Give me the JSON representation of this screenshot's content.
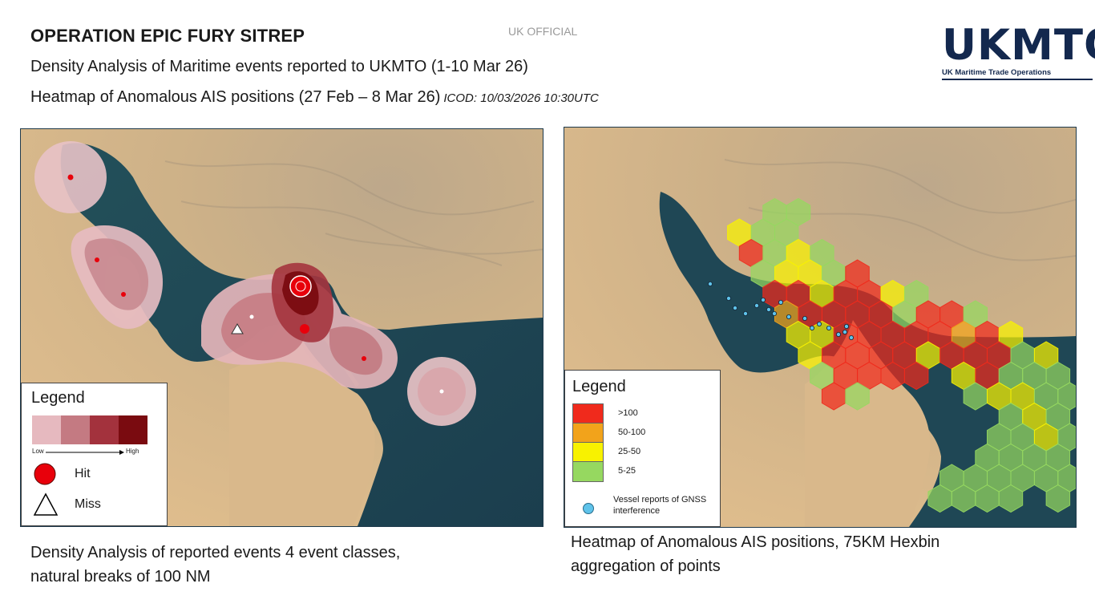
{
  "header": {
    "title": "OPERATION EPIC FURY SITREP",
    "subtitle_1": "Density Analysis of Maritime events reported to UKMTO (1-10 Mar 26)",
    "subtitle_2": "Heatmap of Anomalous AIS positions (27 Feb – 8 Mar 26)",
    "icod": "ICOD: 10/03/2026 10:30UTC",
    "classification": "UK OFFICIAL"
  },
  "logo": {
    "main": "UKMTO",
    "sub": "UK Maritime Trade Operations",
    "color": "#13284e"
  },
  "left_map": {
    "legend": {
      "title": "Legend",
      "low_label": "Low",
      "high_label": "High",
      "density_colors": [
        "#e6b9bf",
        "#c47a82",
        "#a3323d",
        "#7a0b10"
      ],
      "hit_label": "Hit",
      "miss_label": "Miss",
      "hit_color": "#e8000b"
    },
    "caption": "Density Analysis of reported events 4 event classes, natural breaks of 100 NM"
  },
  "right_map": {
    "legend": {
      "title": "Legend",
      "classes": [
        {
          "label": ">100",
          "color": "#f02a1c"
        },
        {
          "label": "50-100",
          "color": "#f2a31b"
        },
        {
          "label": "25-50",
          "color": "#f8f200"
        },
        {
          "label": "5-25",
          "color": "#96d860"
        }
      ],
      "gnss_label": "Vessel reports of GNSS interference",
      "gnss_color": "#5fc3ea"
    },
    "caption": "Heatmap of Anomalous AIS positions, 75KM Hexbin aggregation of points"
  }
}
